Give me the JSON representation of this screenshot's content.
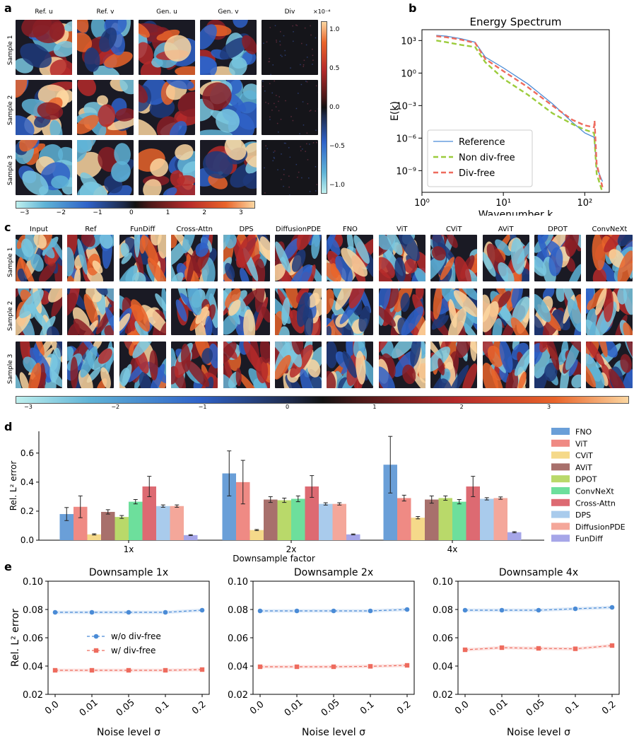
{
  "panel_labels": {
    "a": "a",
    "b": "b",
    "c": "c",
    "d": "d",
    "e": "e"
  },
  "panel_a": {
    "columns": [
      "Ref. u",
      "Ref. v",
      "Gen. u",
      "Gen. v",
      "Div"
    ],
    "rows": [
      "Sample 1",
      "Sample 2",
      "Sample 3"
    ],
    "colorbar_bottom_ticks": [
      "−3",
      "−2",
      "−1",
      "0",
      "1",
      "2",
      "3"
    ],
    "colorbar_right_ticks": [
      "1.0",
      "0.5",
      "0.0",
      "−0.5",
      "−1.0"
    ],
    "colorbar_right_exponent": "×10⁻⁴"
  },
  "panel_c": {
    "columns": [
      "Input",
      "Ref",
      "FunDiff",
      "Cross-Attn",
      "DPS",
      "DiffusionPDE",
      "FNO",
      "ViT",
      "CViT",
      "AViT",
      "DPOT",
      "ConvNeXt"
    ],
    "rows": [
      "Sample 1",
      "Sample 2",
      "Sample 3"
    ],
    "colorbar_ticks": [
      "−3",
      "−2",
      "−1",
      "0",
      "1",
      "2",
      "3"
    ]
  },
  "colors": {
    "FNO": "#6a9fd8",
    "ViT": "#ef8a84",
    "CViT": "#f5d98a",
    "AViT": "#a8706c",
    "DPOT": "#b9d96a",
    "ConvNeXt": "#6ddf9c",
    "Cross-Attn": "#dd6a72",
    "DPS": "#a9cbec",
    "DiffusionPDE": "#f4a79a",
    "FunDiff": "#a6a6e8",
    "ref_line": "#4a8bd6",
    "nondiv_line": "#9ccc3c",
    "div_line": "#ee6b5e"
  },
  "chart_data": [
    {
      "id": "b",
      "type": "line",
      "title": "Energy Spectrum",
      "xlabel": "Wavenumber k",
      "ylabel": "E(k)",
      "xscale": "log",
      "yscale": "log",
      "xlim": [
        1,
        200
      ],
      "ylim": [
        1e-11,
        10000.0
      ],
      "xtick_labels": [
        "10⁰",
        "10¹",
        "10²"
      ],
      "ytick_labels": [
        "10³",
        "10⁰",
        "10⁻³",
        "10⁻⁶",
        "10⁻⁹"
      ],
      "legend": [
        "Reference",
        "Non div-free",
        "Div-free"
      ],
      "legend_position": "lower-left",
      "series": [
        {
          "name": "Reference",
          "x": [
            1.5,
            2,
            3,
            4.5,
            6,
            10,
            20,
            40,
            70,
            100,
            130,
            140,
            165
          ],
          "y": [
            3000,
            2500,
            1500,
            700,
            30,
            3,
            0.1,
            0.0015,
            3e-05,
            3e-06,
            1.2e-06,
            2e-09,
            1e-10
          ]
        },
        {
          "name": "Non div-free",
          "x": [
            1.5,
            2,
            3,
            4.5,
            6,
            10,
            20,
            40,
            70,
            100,
            130,
            140,
            165
          ],
          "y": [
            1000,
            700,
            400,
            250,
            10,
            0.3,
            0.01,
            0.0002,
            2e-05,
            6e-06,
            3e-06,
            5e-10,
            1e-11
          ]
        },
        {
          "name": "Div-free",
          "x": [
            1.5,
            2,
            3,
            4.5,
            6,
            10,
            20,
            40,
            70,
            100,
            130,
            132,
            140,
            165
          ],
          "y": [
            2500,
            2000,
            1200,
            600,
            20,
            1.5,
            0.05,
            0.001,
            5e-05,
            1.5e-05,
            1e-05,
            4e-05,
            4e-09,
            3e-11
          ]
        }
      ]
    },
    {
      "id": "d",
      "type": "bar",
      "xlabel": "Downsample factor",
      "ylabel": "Rel. L² error",
      "ylim": [
        0,
        0.75
      ],
      "ytick_labels": [
        "0.0",
        "0.2",
        "0.4",
        "0.6"
      ],
      "categories": [
        "1x",
        "2x",
        "4x"
      ],
      "series": [
        {
          "name": "FNO",
          "values": [
            0.18,
            0.46,
            0.52
          ],
          "errors": [
            0.045,
            0.155,
            0.195
          ]
        },
        {
          "name": "ViT",
          "values": [
            0.23,
            0.4,
            0.29
          ],
          "errors": [
            0.075,
            0.15,
            0.02
          ]
        },
        {
          "name": "CViT",
          "values": [
            0.04,
            0.07,
            0.155
          ],
          "errors": [
            0.004,
            0.004,
            0.008
          ]
        },
        {
          "name": "AViT",
          "values": [
            0.195,
            0.28,
            0.28
          ],
          "errors": [
            0.015,
            0.02,
            0.025
          ]
        },
        {
          "name": "DPOT",
          "values": [
            0.16,
            0.275,
            0.29
          ],
          "errors": [
            0.01,
            0.015,
            0.015
          ]
        },
        {
          "name": "ConvNeXt",
          "values": [
            0.265,
            0.285,
            0.265
          ],
          "errors": [
            0.015,
            0.02,
            0.015
          ]
        },
        {
          "name": "Cross-Attn",
          "values": [
            0.37,
            0.37,
            0.37
          ],
          "errors": [
            0.07,
            0.075,
            0.07
          ]
        },
        {
          "name": "DPS",
          "values": [
            0.235,
            0.25,
            0.285
          ],
          "errors": [
            0.008,
            0.008,
            0.008
          ]
        },
        {
          "name": "DiffusionPDE",
          "values": [
            0.235,
            0.25,
            0.29
          ],
          "errors": [
            0.008,
            0.008,
            0.008
          ]
        },
        {
          "name": "FunDiff",
          "values": [
            0.035,
            0.04,
            0.055
          ],
          "errors": [
            0.003,
            0.003,
            0.004
          ]
        }
      ],
      "legend_position": "right"
    },
    {
      "id": "e1",
      "type": "line",
      "title": "Downsample 1x",
      "xlabel": "Noise level σ",
      "ylabel": "Rel. L² error",
      "categories": [
        "0.0",
        "0.01",
        "0.05",
        "0.1",
        "0.2"
      ],
      "ylim": [
        0.02,
        0.1
      ],
      "ytick_labels": [
        "0.02",
        "0.04",
        "0.06",
        "0.08",
        "0.10"
      ],
      "legend": [
        "w/o div-free",
        "w/ div-free"
      ],
      "series": [
        {
          "name": "w/o div-free",
          "values": [
            0.078,
            0.078,
            0.078,
            0.078,
            0.0795
          ]
        },
        {
          "name": "w/ div-free",
          "values": [
            0.037,
            0.037,
            0.037,
            0.037,
            0.0375
          ]
        }
      ]
    },
    {
      "id": "e2",
      "type": "line",
      "title": "Downsample 2x",
      "xlabel": "Noise level σ",
      "categories": [
        "0.0",
        "0.01",
        "0.05",
        "0.1",
        "0.2"
      ],
      "ylim": [
        0.02,
        0.1
      ],
      "ytick_labels": [
        "0.02",
        "0.04",
        "0.06",
        "0.08",
        "0.10"
      ],
      "series": [
        {
          "name": "w/o div-free",
          "values": [
            0.079,
            0.079,
            0.079,
            0.079,
            0.08
          ]
        },
        {
          "name": "w/ div-free",
          "values": [
            0.0395,
            0.0395,
            0.0395,
            0.0398,
            0.0405
          ]
        }
      ]
    },
    {
      "id": "e3",
      "type": "line",
      "title": "Downsample 4x",
      "xlabel": "Noise level σ",
      "categories": [
        "0.0",
        "0.01",
        "0.05",
        "0.1",
        "0.2"
      ],
      "ylim": [
        0.02,
        0.1
      ],
      "ytick_labels": [
        "0.02",
        "0.04",
        "0.06",
        "0.08",
        "0.10"
      ],
      "series": [
        {
          "name": "w/o div-free",
          "values": [
            0.0795,
            0.0795,
            0.0795,
            0.0805,
            0.0815
          ]
        },
        {
          "name": "w/ div-free",
          "values": [
            0.0515,
            0.053,
            0.0525,
            0.0522,
            0.0545
          ]
        }
      ]
    }
  ]
}
